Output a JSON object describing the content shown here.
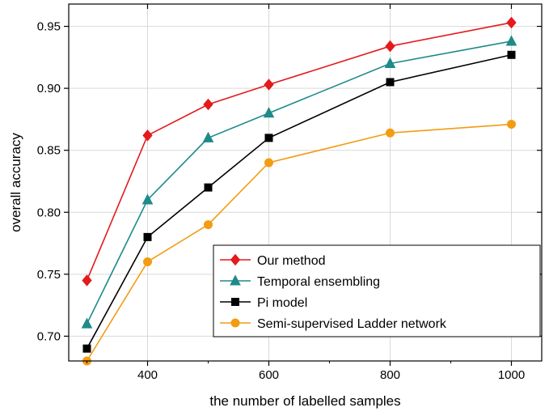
{
  "chart_data": {
    "type": "line",
    "title": "",
    "xlabel": "the number of labelled samples",
    "ylabel": "overall accuracy",
    "x": [
      300,
      400,
      500,
      600,
      800,
      1000
    ],
    "xlim": [
      270,
      1050
    ],
    "ylim": [
      0.68,
      0.968
    ],
    "xticks": [
      400,
      600,
      800,
      1000
    ],
    "yticks": [
      0.7,
      0.75,
      0.8,
      0.85,
      0.9,
      0.95
    ],
    "xtick_labels": [
      "400",
      "600",
      "800",
      "1000"
    ],
    "ytick_labels": [
      "0.70",
      "0.75",
      "0.80",
      "0.85",
      "0.90",
      "0.95"
    ],
    "grid": true,
    "legend_position": "lower-right",
    "series": [
      {
        "name": "Our method",
        "color": "#e41a1c",
        "marker": "diamond",
        "values": [
          0.745,
          0.862,
          0.887,
          0.903,
          0.934,
          0.953
        ]
      },
      {
        "name": "Temporal ensembling",
        "color": "#1f8a8a",
        "marker": "triangle",
        "values": [
          0.71,
          0.81,
          0.86,
          0.88,
          0.92,
          0.938
        ]
      },
      {
        "name": "Pi model",
        "color": "#000000",
        "marker": "square",
        "values": [
          0.69,
          0.78,
          0.82,
          0.86,
          0.905,
          0.927
        ]
      },
      {
        "name": "Semi-supervised Ladder network",
        "color": "#f39c12",
        "marker": "circle",
        "values": [
          0.68,
          0.76,
          0.79,
          0.84,
          0.864,
          0.871
        ]
      }
    ]
  }
}
